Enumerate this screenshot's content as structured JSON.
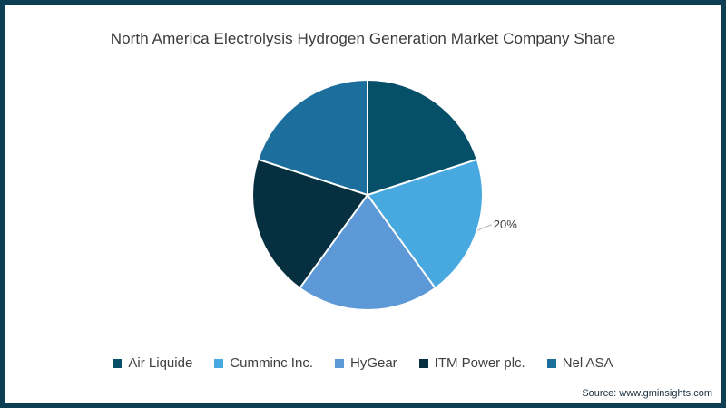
{
  "frame": {
    "border_color": "#0e3e54",
    "background": "#ffffff"
  },
  "chart_data": {
    "type": "pie",
    "title": "North America Electrolysis Hydrogen Generation Market Company Share",
    "categories": [
      "Air Liquide",
      "Cumminc Inc.",
      "HyGear",
      "ITM Power plc.",
      "Nel ASA"
    ],
    "values": [
      20,
      20,
      20,
      20,
      20
    ],
    "unit": "%",
    "colors": [
      "#064f68",
      "#47a9e0",
      "#5c99d6",
      "#06303f",
      "#1c6e9d"
    ],
    "start_angle_deg": 0,
    "direction": "clockwise",
    "separator_color": "#ffffff",
    "legend_position": "bottom",
    "annotations": [
      {
        "text": "20%",
        "slice_index": 1
      }
    ]
  },
  "footer": {
    "source": "Source: www.gminsights.com"
  }
}
